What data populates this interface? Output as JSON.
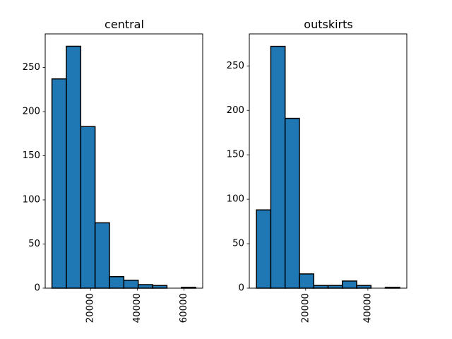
{
  "chart_data": [
    {
      "type": "bar",
      "subtype": "histogram",
      "title": "central",
      "bin_edges": [
        3500,
        9650,
        15800,
        21950,
        28100,
        34250,
        40400,
        46550,
        52700,
        58850,
        65000
      ],
      "values": [
        237,
        274,
        183,
        74,
        13,
        9,
        4,
        3,
        0,
        1
      ],
      "xlim": [
        600,
        68000
      ],
      "ylim": [
        0,
        288
      ],
      "xticks": [
        20000,
        40000,
        60000
      ],
      "xtick_labels": [
        "20000",
        "40000",
        "60000"
      ],
      "yticks": [
        0,
        50,
        100,
        150,
        200,
        250
      ],
      "ytick_labels": [
        "0",
        "50",
        "100",
        "150",
        "200",
        "250"
      ],
      "xlabel": "",
      "ylabel": "",
      "bar_color": "#1f77b4",
      "edge_color": "#000000"
    },
    {
      "type": "bar",
      "subtype": "histogram",
      "title": "outskirts",
      "bin_edges": [
        4200,
        8800,
        13400,
        18000,
        22600,
        27200,
        31800,
        36400,
        41000,
        45600,
        50200
      ],
      "values": [
        88,
        272,
        191,
        16,
        3,
        3,
        8,
        3,
        0,
        1
      ],
      "xlim": [
        1900,
        52500
      ],
      "ylim": [
        0,
        286
      ],
      "xticks": [
        20000,
        40000
      ],
      "xtick_labels": [
        "20000",
        "40000"
      ],
      "yticks": [
        0,
        50,
        100,
        150,
        200,
        250
      ],
      "ytick_labels": [
        "0",
        "50",
        "100",
        "150",
        "200",
        "250"
      ],
      "xlabel": "",
      "ylabel": "",
      "bar_color": "#1f77b4",
      "edge_color": "#000000"
    }
  ]
}
